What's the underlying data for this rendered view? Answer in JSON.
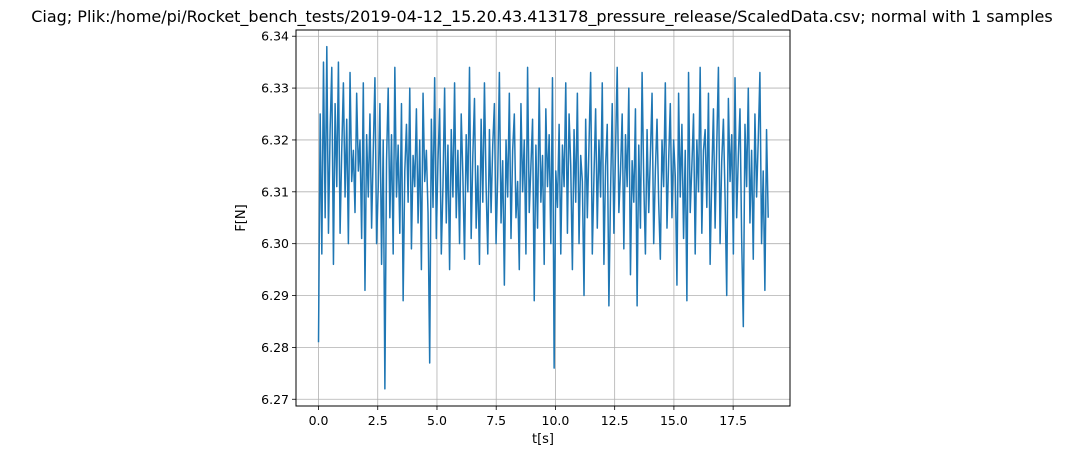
{
  "chart_data": {
    "type": "line",
    "title": "Ciag; Plik:/home/pi/Rocket_bench_tests/2019-04-12_15.20.43.413178_pressure_release/ScaledData.csv; normal with 1 samples",
    "xlabel": "t[s]",
    "ylabel": "F[N]",
    "xlim": [
      -0.95,
      19.9
    ],
    "ylim": [
      6.2687,
      6.3412
    ],
    "x_ticks": [
      0,
      2.5,
      5,
      7.5,
      10,
      12.5,
      15,
      17.5
    ],
    "x_tick_labels": [
      "0.0",
      "2.5",
      "5.0",
      "7.5",
      "10.0",
      "12.5",
      "15.0",
      "17.5"
    ],
    "y_ticks": [
      6.27,
      6.28,
      6.29,
      6.3,
      6.31,
      6.32,
      6.33,
      6.34
    ],
    "y_tick_labels": [
      "6.27",
      "6.28",
      "6.29",
      "6.30",
      "6.31",
      "6.32",
      "6.33",
      "6.34"
    ],
    "grid": true,
    "line_color": "#1f77b4",
    "series": [
      {
        "x_start": 0.0,
        "x_end": 18.98,
        "values": [
          6.281,
          6.325,
          6.298,
          6.335,
          6.305,
          6.338,
          6.302,
          6.322,
          6.334,
          6.296,
          6.327,
          6.311,
          6.335,
          6.302,
          6.318,
          6.331,
          6.309,
          6.324,
          6.3,
          6.333,
          6.312,
          6.318,
          6.306,
          6.329,
          6.314,
          6.32,
          6.301,
          6.331,
          6.291,
          6.321,
          6.309,
          6.325,
          6.303,
          6.318,
          6.332,
          6.3,
          6.311,
          6.327,
          6.296,
          6.32,
          6.272,
          6.316,
          6.33,
          6.305,
          6.321,
          6.298,
          6.334,
          6.309,
          6.319,
          6.302,
          6.327,
          6.289,
          6.314,
          6.323,
          6.308,
          6.33,
          6.299,
          6.317,
          6.311,
          6.326,
          6.304,
          6.32,
          6.295,
          6.329,
          6.312,
          6.318,
          6.306,
          6.277,
          6.324,
          6.307,
          6.332,
          6.301,
          6.316,
          6.326,
          6.298,
          6.311,
          6.33,
          6.304,
          6.319,
          6.295,
          6.322,
          6.309,
          6.331,
          6.305,
          6.318,
          6.3,
          6.325,
          6.313,
          6.297,
          6.321,
          6.31,
          6.334,
          6.301,
          6.317,
          6.328,
          6.303,
          6.315,
          6.296,
          6.324,
          6.308,
          6.331,
          6.311,
          6.298,
          6.322,
          6.306,
          6.319,
          6.327,
          6.3,
          6.313,
          6.333,
          6.304,
          6.316,
          6.292,
          6.32,
          6.309,
          6.329,
          6.301,
          6.318,
          6.325,
          6.305,
          6.312,
          6.295,
          6.327,
          6.31,
          6.32,
          6.298,
          6.334,
          6.306,
          6.315,
          6.324,
          6.289,
          6.319,
          6.303,
          6.33,
          6.308,
          6.317,
          6.296,
          6.326,
          6.311,
          6.321,
          6.3,
          6.332,
          6.276,
          6.314,
          6.307,
          6.323,
          6.298,
          6.319,
          6.311,
          6.331,
          6.302,
          6.325,
          6.315,
          6.295,
          6.322,
          6.308,
          6.329,
          6.3,
          6.317,
          6.312,
          6.29,
          6.324,
          6.305,
          6.319,
          6.333,
          6.298,
          6.313,
          6.326,
          6.303,
          6.32,
          6.309,
          6.331,
          6.296,
          6.315,
          6.323,
          6.288,
          6.31,
          6.327,
          6.302,
          6.318,
          6.334,
          6.306,
          6.314,
          6.325,
          6.299,
          6.321,
          6.311,
          6.33,
          6.294,
          6.316,
          6.308,
          6.326,
          6.288,
          6.319,
          6.303,
          6.333,
          6.312,
          6.298,
          6.322,
          6.306,
          6.317,
          6.329,
          6.3,
          6.314,
          6.324,
          6.308,
          6.297,
          6.32,
          6.311,
          6.331,
          6.303,
          6.316,
          6.327,
          6.305,
          6.32,
          6.313,
          6.292,
          6.329,
          6.309,
          6.323,
          6.301,
          6.318,
          6.289,
          6.333,
          6.306,
          6.315,
          6.325,
          6.298,
          6.32,
          6.31,
          6.334,
          6.302,
          6.318,
          6.322,
          6.307,
          6.329,
          6.296,
          6.313,
          6.326,
          6.303,
          6.319,
          6.334,
          6.3,
          6.316,
          6.324,
          6.309,
          6.29,
          6.328,
          6.312,
          6.321,
          6.298,
          6.332,
          6.305,
          6.317,
          6.326,
          6.301,
          6.284,
          6.323,
          6.311,
          6.33,
          6.304,
          6.318,
          6.297,
          6.325,
          6.309,
          6.32,
          6.333,
          6.3,
          6.314,
          6.291,
          6.322,
          6.305
        ]
      }
    ]
  }
}
